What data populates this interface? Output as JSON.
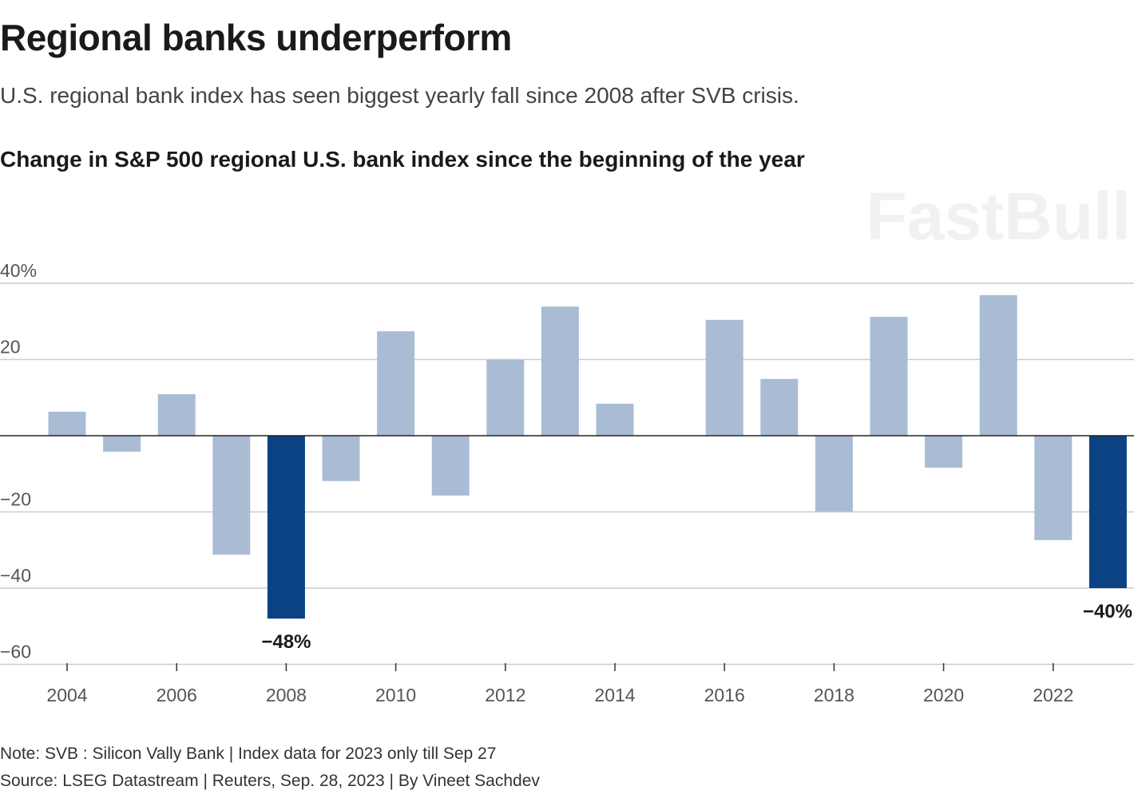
{
  "title": "Regional banks underperform",
  "subtitle": "U.S. regional bank index has seen biggest yearly fall since 2008 after SVB crisis.",
  "chart_data": {
    "type": "bar",
    "title": "Change in S&P 500 regional U.S. bank index since the beginning of the year",
    "categories": [
      "2004",
      "2005",
      "2006",
      "2007",
      "2008",
      "2009",
      "2010",
      "2011",
      "2012",
      "2013",
      "2014",
      "2015",
      "2016",
      "2017",
      "2018",
      "2019",
      "2020",
      "2021",
      "2022",
      "2023"
    ],
    "values": [
      6.3,
      -4.2,
      10.9,
      -31.2,
      -48,
      -11.9,
      27.4,
      -15.7,
      19.9,
      33.9,
      8.4,
      0,
      30.4,
      14.9,
      -19.9,
      31.2,
      -8.4,
      36.9,
      -27.4,
      -40
    ],
    "highlighted": [
      "2008",
      "2023"
    ],
    "ylim": [
      -60,
      40
    ],
    "yticks": [
      40,
      20,
      0,
      -20,
      -40,
      -60
    ],
    "ytick_labels": [
      "40%",
      "20",
      "",
      "−20",
      "−40",
      "−60"
    ],
    "xtick_labels": [
      "2004",
      "2006",
      "2008",
      "2010",
      "2012",
      "2014",
      "2016",
      "2018",
      "2020",
      "2022"
    ],
    "annotations": [
      {
        "category": "2008",
        "text": "−48%"
      },
      {
        "category": "2023",
        "text": "−40%"
      }
    ],
    "grid": true,
    "colors": {
      "bar": "#a9bcd4",
      "highlight": "#0b4283",
      "grid": "#cccccc",
      "zero": "#222222"
    }
  },
  "note": "Note: SVB : Silicon Vally Bank | Index data for 2023 only till Sep 27",
  "source": "Source: LSEG Datastream | Reuters, Sep. 28, 2023 | By Vineet Sachdev",
  "watermark": "FastBull"
}
